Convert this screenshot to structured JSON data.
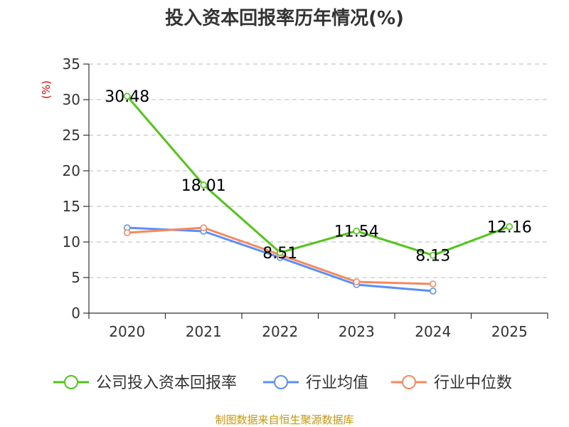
{
  "chart_data": {
    "type": "line",
    "title": "投入资本回报率历年情况(%)",
    "ylabel": "(%)",
    "ylim": [
      0,
      35
    ],
    "yticks": [
      0,
      5,
      10,
      15,
      20,
      25,
      30,
      35
    ],
    "categories": [
      "2020",
      "2021",
      "2022",
      "2023",
      "2024",
      "2025"
    ],
    "grid": true,
    "legend_position": "bottom",
    "series": [
      {
        "name": "公司投入资本回报率",
        "color": "#52c41a",
        "values": [
          30.48,
          18.01,
          8.51,
          11.54,
          8.13,
          12.16
        ],
        "labels": [
          "30.48",
          "18.01",
          "8.51",
          "11.54",
          "8.13",
          "12.16"
        ]
      },
      {
        "name": "行业均值",
        "color": "#5b8ff9",
        "values": [
          12.0,
          11.5,
          7.8,
          4.0,
          3.1,
          null
        ]
      },
      {
        "name": "行业中位数",
        "color": "#f4895f",
        "values": [
          11.3,
          12.0,
          8.2,
          4.4,
          4.1,
          null
        ]
      }
    ],
    "source": "制图数据来自恒生聚源数据库"
  }
}
